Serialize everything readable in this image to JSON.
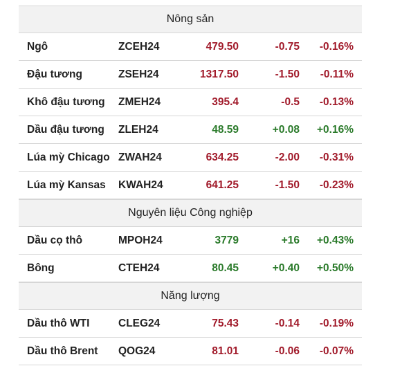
{
  "sections": [
    {
      "title": "Nông sản",
      "rows": [
        {
          "name": "Ngô",
          "code": "ZCEH24",
          "price": "479.50",
          "change": "-0.75",
          "pct": "-0.16%",
          "dir": "down"
        },
        {
          "name": "Đậu tương",
          "code": "ZSEH24",
          "price": "1317.50",
          "change": "-1.50",
          "pct": "-0.11%",
          "dir": "down"
        },
        {
          "name": "Khô đậu tương",
          "code": "ZMEH24",
          "price": "395.4",
          "change": "-0.5",
          "pct": "-0.13%",
          "dir": "down"
        },
        {
          "name": "Dầu đậu tương",
          "code": "ZLEH24",
          "price": "48.59",
          "change": "+0.08",
          "pct": "+0.16%",
          "dir": "up"
        },
        {
          "name": "Lúa mỳ Chicago",
          "code": "ZWAH24",
          "price": "634.25",
          "change": "-2.00",
          "pct": "-0.31%",
          "dir": "down"
        },
        {
          "name": "Lúa mỳ Kansas",
          "code": "KWAH24",
          "price": "641.25",
          "change": "-1.50",
          "pct": "-0.23%",
          "dir": "down"
        }
      ]
    },
    {
      "title": "Nguyên liệu Công nghiệp",
      "rows": [
        {
          "name": "Dầu cọ thô",
          "code": "MPOH24",
          "price": "3779",
          "change": "+16",
          "pct": "+0.43%",
          "dir": "up"
        },
        {
          "name": "Bông",
          "code": "CTEH24",
          "price": "80.45",
          "change": "+0.40",
          "pct": "+0.50%",
          "dir": "up"
        }
      ]
    },
    {
      "title": "Năng lượng",
      "rows": [
        {
          "name": "Dầu thô WTI",
          "code": "CLEG24",
          "price": "75.43",
          "change": "-0.14",
          "pct": "-0.19%",
          "dir": "down"
        },
        {
          "name": "Dầu thô Brent",
          "code": "QOG24",
          "price": "81.01",
          "change": "-0.06",
          "pct": "-0.07%",
          "dir": "down"
        }
      ]
    }
  ],
  "colors": {
    "up": "#2a7a2a",
    "down": "#a11a2a",
    "header_bg": "#f2f2f2",
    "border": "#d6d6d6"
  }
}
